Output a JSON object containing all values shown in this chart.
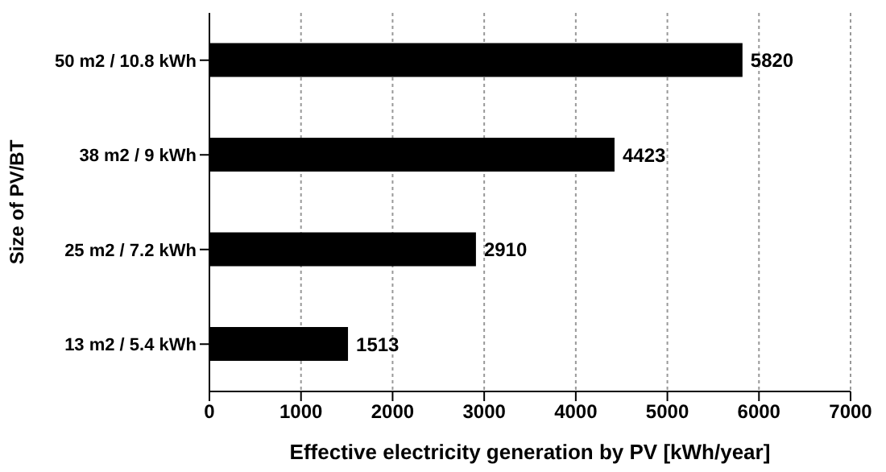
{
  "chart_data": {
    "type": "bar",
    "orientation": "horizontal",
    "categories": [
      "50 m2 / 10.8 kWh",
      "38 m2 / 9 kWh",
      "25 m2 / 7.2 kWh",
      "13 m2 / 5.4 kWh"
    ],
    "values": [
      5820,
      4423,
      2910,
      1513
    ],
    "color": "#000000",
    "xlim": [
      0,
      7000
    ],
    "xticks": [
      0,
      1000,
      2000,
      3000,
      4000,
      5000,
      6000,
      7000
    ],
    "xlabel": "Effective electricity generation by PV [kWh/year]",
    "ylabel": "Size of PV/BT",
    "grid": "x",
    "data_labels": true
  }
}
